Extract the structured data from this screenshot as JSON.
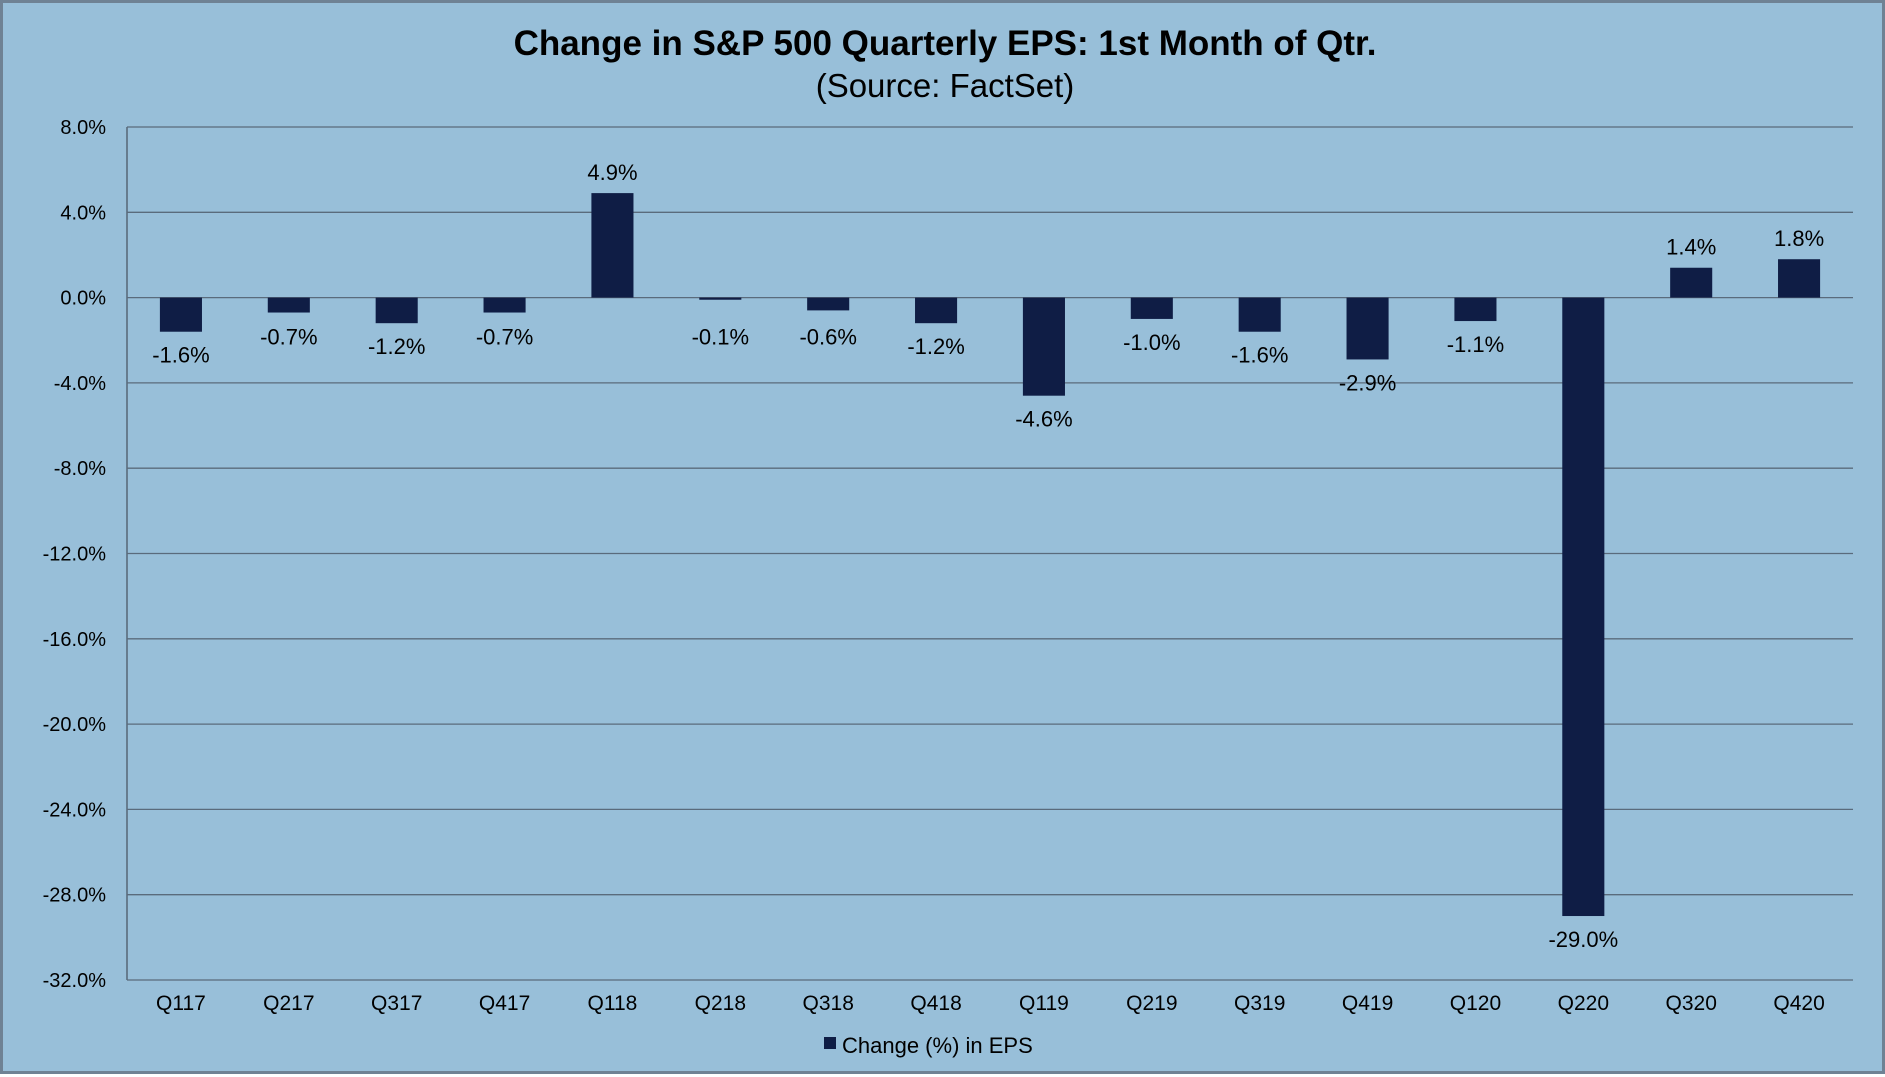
{
  "chart_data": {
    "type": "bar",
    "title": "Change in S&P 500 Quarterly EPS: 1st Month of Qtr.",
    "subtitle": "(Source: FactSet)",
    "categories": [
      "Q117",
      "Q217",
      "Q317",
      "Q417",
      "Q118",
      "Q218",
      "Q318",
      "Q418",
      "Q119",
      "Q219",
      "Q319",
      "Q419",
      "Q120",
      "Q220",
      "Q320",
      "Q420"
    ],
    "series": [
      {
        "name": "Change (%) in EPS",
        "values": [
          -1.6,
          -0.7,
          -1.2,
          -0.7,
          4.9,
          -0.1,
          -0.6,
          -1.2,
          -4.6,
          -1.0,
          -1.6,
          -2.9,
          -1.1,
          -29.0,
          1.4,
          1.8
        ],
        "data_labels": [
          "-1.6%",
          "-0.7%",
          "-1.2%",
          "-0.7%",
          "4.9%",
          "-0.1%",
          "-0.6%",
          "-1.2%",
          "-4.6%",
          "-1.0%",
          "-1.6%",
          "-2.9%",
          "-1.1%",
          "-29.0%",
          "1.4%",
          "1.8%"
        ],
        "color": "#0f1d45"
      }
    ],
    "ylim": [
      -32,
      8
    ],
    "yticks": [
      8,
      4,
      0,
      -4,
      -8,
      -12,
      -16,
      -20,
      -24,
      -28,
      -32
    ],
    "ytick_labels": [
      "8.0%",
      "4.0%",
      "0.0%",
      "-4.0%",
      "-8.0%",
      "-12.0%",
      "-16.0%",
      "-20.0%",
      "-24.0%",
      "-28.0%",
      "-32.0%"
    ],
    "xlabel": "",
    "ylabel": "",
    "grid": true,
    "legend_position": "bottom-center",
    "colors": {
      "background": "#98bfd9",
      "bar": "#0f1d45",
      "grid": "#5a6b7c"
    }
  }
}
